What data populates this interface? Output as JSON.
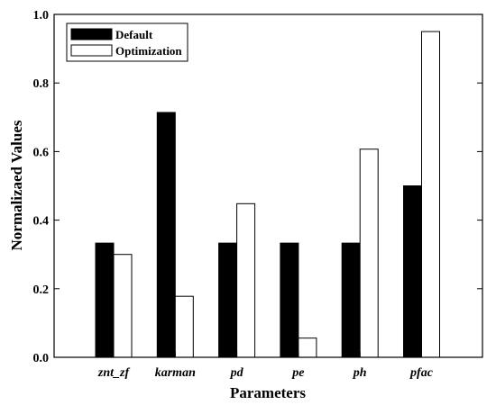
{
  "chart_data": {
    "type": "bar",
    "title": "",
    "xlabel": "Parameters",
    "ylabel": "Normalizaed Values",
    "categories": [
      "znt_zf",
      "karman",
      "pd",
      "pe",
      "ph",
      "pfac"
    ],
    "series": [
      {
        "name": "Default",
        "color": "#000000",
        "values": [
          0.333,
          0.714,
          0.333,
          0.333,
          0.333,
          0.5
        ]
      },
      {
        "name": "Optimization",
        "color": "#ffffff",
        "values": [
          0.3,
          0.178,
          0.448,
          0.056,
          0.607,
          0.95
        ]
      }
    ],
    "ylim": [
      0,
      1.0
    ],
    "yticks": [
      0.0,
      0.2,
      0.4,
      0.6,
      0.8,
      1.0
    ],
    "ytick_labels": [
      "0.0",
      "0.2",
      "0.4",
      "0.6",
      "0.8",
      "1.0"
    ],
    "grid": false,
    "legend_position": "top-left"
  }
}
